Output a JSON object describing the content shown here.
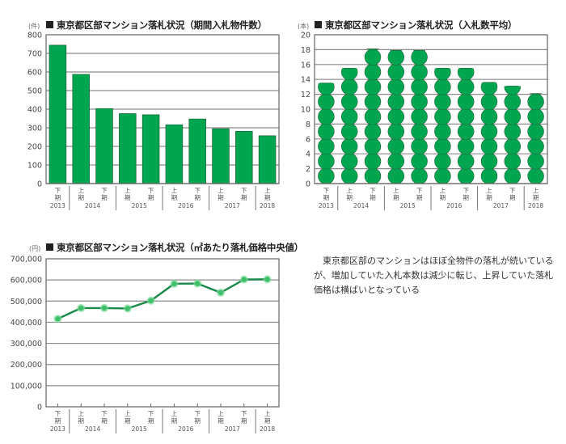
{
  "charts": {
    "count": {
      "unit": "(件)",
      "title": "東京都区部マンション落札状況（期間入札物件数）"
    },
    "avg_bids": {
      "unit": "(本)",
      "title": "東京都区部マンション落札状況（入札数平均）"
    },
    "price": {
      "unit": "(円)",
      "title": "東京都区部マンション落札状況（㎡あたり落札価格中央値）"
    }
  },
  "note": {
    "text": "東京都区部のマンションはほぼ全物件の落札が続いているが、増加していた入札本数は減少に転じ、上昇していた落札価格は横ばいとなっている"
  },
  "colors": {
    "bar_fill": "#00a550",
    "bar_stroke": "#1e6b3a",
    "line": "#1a8a4a",
    "marker": "#3cc06a",
    "grid": "#8c8c8c",
    "frame": "#666666"
  },
  "chart_data": [
    {
      "type": "bar",
      "title": "東京都区部マンション落札状況（期間入札物件数）",
      "ylabel": "(件)",
      "xlabel": "",
      "categories": [
        "2013 下期",
        "2014 上期",
        "2014 下期",
        "2015 上期",
        "2015 下期",
        "2016 上期",
        "2016 下期",
        "2017 上期",
        "2017 下期",
        "2018 上期"
      ],
      "half_labels": [
        "下期",
        "上期",
        "下期",
        "上期",
        "下期",
        "上期",
        "下期",
        "上期",
        "下期",
        "上期"
      ],
      "year_groups": [
        {
          "label": "2013",
          "span": 1
        },
        {
          "label": "2014",
          "span": 2
        },
        {
          "label": "2015",
          "span": 2
        },
        {
          "label": "2016",
          "span": 2
        },
        {
          "label": "2017",
          "span": 2
        },
        {
          "label": "2018",
          "span": 1
        }
      ],
      "values": [
        744,
        587,
        403,
        376,
        370,
        316,
        347,
        295,
        281,
        257
      ],
      "ylim": [
        0,
        800
      ],
      "yticks": [
        0,
        100,
        200,
        300,
        400,
        500,
        600,
        700,
        800
      ],
      "ytick_labels": [
        "0",
        "100",
        "200",
        "300",
        "400",
        "500",
        "600",
        "700",
        "800"
      ],
      "grid": true,
      "legend": null
    },
    {
      "type": "bar",
      "style": "stacked-circle pictograph",
      "title": "東京都区部マンション落札状況（入札数平均）",
      "ylabel": "(本)",
      "xlabel": "",
      "categories": [
        "2013 下期",
        "2014 上期",
        "2014 下期",
        "2015 上期",
        "2015 下期",
        "2016 上期",
        "2016 下期",
        "2017 上期",
        "2017 下期",
        "2018 上期"
      ],
      "half_labels": [
        "下期",
        "上期",
        "下期",
        "上期",
        "下期",
        "上期",
        "下期",
        "上期",
        "下期",
        "上期"
      ],
      "year_groups": [
        {
          "label": "2013",
          "span": 1
        },
        {
          "label": "2014",
          "span": 2
        },
        {
          "label": "2015",
          "span": 2
        },
        {
          "label": "2016",
          "span": 2
        },
        {
          "label": "2017",
          "span": 2
        },
        {
          "label": "2018",
          "span": 1
        }
      ],
      "values": [
        13.5,
        15.5,
        18.1,
        17.9,
        17.9,
        15.5,
        15.5,
        13.6,
        13.1,
        12.1
      ],
      "ylim": [
        0,
        20
      ],
      "yticks": [
        0,
        2,
        4,
        6,
        8,
        10,
        12,
        14,
        16,
        18,
        20
      ],
      "ytick_labels": [
        "0",
        "2",
        "4",
        "6",
        "8",
        "10",
        "12",
        "14",
        "16",
        "18",
        "20"
      ],
      "grid": true,
      "legend": null
    },
    {
      "type": "line",
      "title": "東京都区部マンション落札状況（㎡あたり落札価格中央値）",
      "ylabel": "(円)",
      "xlabel": "",
      "categories": [
        "2013 下期",
        "2014 上期",
        "2014 下期",
        "2015 上期",
        "2015 下期",
        "2016 上期",
        "2016 下期",
        "2017 上期",
        "2017 下期",
        "2018 上期"
      ],
      "half_labels": [
        "下期",
        "上期",
        "下期",
        "上期",
        "下期",
        "上期",
        "下期",
        "上期",
        "下期",
        "上期"
      ],
      "year_groups": [
        {
          "label": "2013",
          "span": 1
        },
        {
          "label": "2014",
          "span": 2
        },
        {
          "label": "2015",
          "span": 2
        },
        {
          "label": "2016",
          "span": 2
        },
        {
          "label": "2017",
          "span": 2
        },
        {
          "label": "2018",
          "span": 1
        }
      ],
      "values": [
        416000,
        467000,
        467000,
        465000,
        502000,
        582000,
        583000,
        540000,
        602000,
        603000
      ],
      "ylim": [
        0,
        700000
      ],
      "yticks": [
        0,
        100000,
        200000,
        300000,
        400000,
        500000,
        600000,
        700000
      ],
      "ytick_labels": [
        "0",
        "100,000",
        "200,000",
        "300,000",
        "400,000",
        "500,000",
        "600,000",
        "700,000"
      ],
      "grid": true,
      "legend": null
    }
  ]
}
